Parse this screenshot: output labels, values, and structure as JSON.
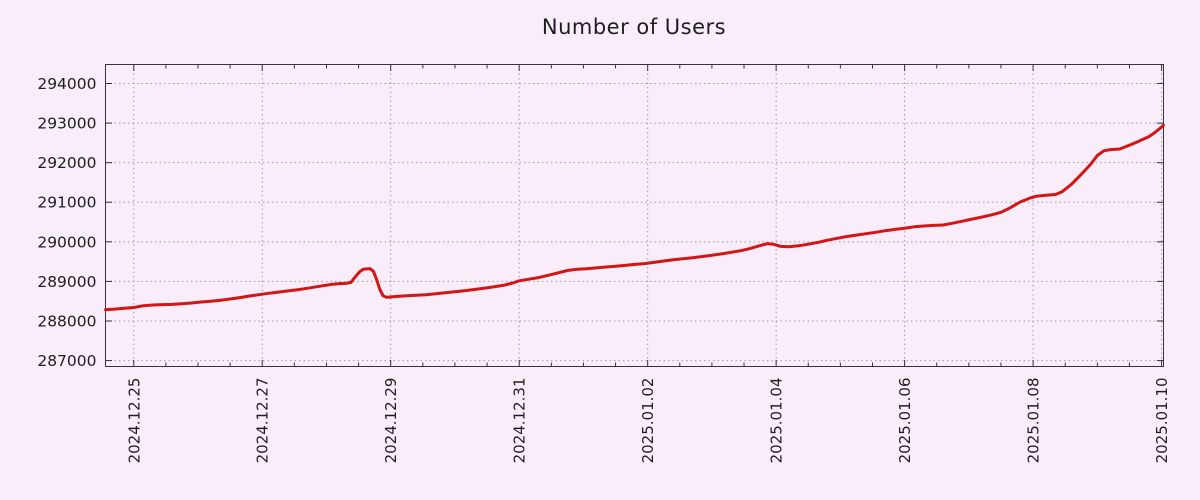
{
  "chart_data": {
    "type": "line",
    "title": "Number of Users",
    "legend": "none",
    "grid": {
      "show": true,
      "style": "dotted",
      "at": "major-ticks"
    },
    "colors": {
      "background": "#f9edf9",
      "line": "#d41515",
      "grid": "#a099a8",
      "border": "#37323d",
      "text": "#1e1e1e"
    },
    "x_axis": {
      "unit_note": "x values are days since 2024-12-25 00:00",
      "lim": [
        -0.44,
        16.03
      ],
      "minor_tick_interval": 0.5,
      "major_ticks": [
        {
          "day": 0,
          "label": "2024.12.25"
        },
        {
          "day": 2,
          "label": "2024.12.27"
        },
        {
          "day": 4,
          "label": "2024.12.29"
        },
        {
          "day": 6,
          "label": "2024.12.31"
        },
        {
          "day": 8,
          "label": "2025.01.02"
        },
        {
          "day": 10,
          "label": "2025.01.04"
        },
        {
          "day": 12,
          "label": "2025.01.06"
        },
        {
          "day": 14,
          "label": "2025.01.08"
        },
        {
          "day": 16,
          "label": "2025.01.10"
        }
      ]
    },
    "y_axis": {
      "lim": [
        286850,
        294480
      ],
      "major_ticks": [
        {
          "value": 287000,
          "label": "287000"
        },
        {
          "value": 288000,
          "label": "288000"
        },
        {
          "value": 289000,
          "label": "289000"
        },
        {
          "value": 290000,
          "label": "290000"
        },
        {
          "value": 291000,
          "label": "291000"
        },
        {
          "value": 292000,
          "label": "292000"
        },
        {
          "value": 293000,
          "label": "293000"
        },
        {
          "value": 294000,
          "label": "294000"
        }
      ]
    },
    "series": [
      {
        "name": "Number of Users",
        "color": "#d41515",
        "points": [
          [
            -0.44,
            288285
          ],
          [
            -0.3,
            288300
          ],
          [
            -0.15,
            288320
          ],
          [
            0,
            288340
          ],
          [
            0.15,
            288385
          ],
          [
            0.3,
            288405
          ],
          [
            0.45,
            288415
          ],
          [
            0.6,
            288420
          ],
          [
            0.75,
            288435
          ],
          [
            0.9,
            288455
          ],
          [
            1.05,
            288480
          ],
          [
            1.2,
            288500
          ],
          [
            1.35,
            288525
          ],
          [
            1.5,
            288555
          ],
          [
            1.65,
            288590
          ],
          [
            1.8,
            288630
          ],
          [
            1.95,
            288665
          ],
          [
            2.1,
            288700
          ],
          [
            2.25,
            288730
          ],
          [
            2.4,
            288760
          ],
          [
            2.55,
            288790
          ],
          [
            2.7,
            288825
          ],
          [
            2.85,
            288865
          ],
          [
            3.0,
            288905
          ],
          [
            3.1,
            288930
          ],
          [
            3.2,
            288945
          ],
          [
            3.3,
            288950
          ],
          [
            3.38,
            288975
          ],
          [
            3.45,
            289120
          ],
          [
            3.52,
            289250
          ],
          [
            3.58,
            289310
          ],
          [
            3.68,
            289320
          ],
          [
            3.73,
            289255
          ],
          [
            3.78,
            289050
          ],
          [
            3.83,
            288800
          ],
          [
            3.88,
            288640
          ],
          [
            3.93,
            288600
          ],
          [
            4.0,
            288605
          ],
          [
            4.1,
            288620
          ],
          [
            4.25,
            288635
          ],
          [
            4.4,
            288650
          ],
          [
            4.55,
            288665
          ],
          [
            4.7,
            288690
          ],
          [
            4.85,
            288715
          ],
          [
            5.0,
            288740
          ],
          [
            5.15,
            288765
          ],
          [
            5.3,
            288795
          ],
          [
            5.45,
            288825
          ],
          [
            5.6,
            288860
          ],
          [
            5.75,
            288900
          ],
          [
            5.9,
            288960
          ],
          [
            6.0,
            289015
          ],
          [
            6.15,
            289055
          ],
          [
            6.3,
            289095
          ],
          [
            6.45,
            289155
          ],
          [
            6.6,
            289215
          ],
          [
            6.75,
            289275
          ],
          [
            6.9,
            289305
          ],
          [
            7.05,
            289320
          ],
          [
            7.2,
            289340
          ],
          [
            7.35,
            289365
          ],
          [
            7.5,
            289385
          ],
          [
            7.65,
            289405
          ],
          [
            7.8,
            289430
          ],
          [
            7.95,
            289450
          ],
          [
            8.1,
            289480
          ],
          [
            8.25,
            289515
          ],
          [
            8.4,
            289545
          ],
          [
            8.55,
            289570
          ],
          [
            8.7,
            289600
          ],
          [
            8.85,
            289630
          ],
          [
            9.0,
            289660
          ],
          [
            9.15,
            289695
          ],
          [
            9.3,
            289735
          ],
          [
            9.45,
            289775
          ],
          [
            9.6,
            289835
          ],
          [
            9.75,
            289905
          ],
          [
            9.87,
            289955
          ],
          [
            9.97,
            289935
          ],
          [
            10.07,
            289885
          ],
          [
            10.2,
            289875
          ],
          [
            10.35,
            289900
          ],
          [
            10.5,
            289940
          ],
          [
            10.65,
            289985
          ],
          [
            10.8,
            290040
          ],
          [
            10.95,
            290090
          ],
          [
            11.1,
            290135
          ],
          [
            11.25,
            290170
          ],
          [
            11.4,
            290205
          ],
          [
            11.55,
            290240
          ],
          [
            11.7,
            290280
          ],
          [
            11.85,
            290315
          ],
          [
            12.0,
            290345
          ],
          [
            12.15,
            290380
          ],
          [
            12.3,
            290400
          ],
          [
            12.45,
            290415
          ],
          [
            12.6,
            290425
          ],
          [
            12.75,
            290470
          ],
          [
            12.9,
            290520
          ],
          [
            13.05,
            290575
          ],
          [
            13.2,
            290625
          ],
          [
            13.35,
            290680
          ],
          [
            13.5,
            290745
          ],
          [
            13.65,
            290865
          ],
          [
            13.8,
            291005
          ],
          [
            13.95,
            291105
          ],
          [
            14.05,
            291150
          ],
          [
            14.2,
            291175
          ],
          [
            14.35,
            291195
          ],
          [
            14.45,
            291265
          ],
          [
            14.6,
            291455
          ],
          [
            14.75,
            291705
          ],
          [
            14.9,
            291965
          ],
          [
            15.0,
            292180
          ],
          [
            15.1,
            292300
          ],
          [
            15.2,
            292330
          ],
          [
            15.35,
            292345
          ],
          [
            15.5,
            292440
          ],
          [
            15.65,
            292545
          ],
          [
            15.8,
            292655
          ],
          [
            15.9,
            292765
          ],
          [
            16.0,
            292900
          ],
          [
            16.03,
            292945
          ]
        ]
      }
    ]
  }
}
